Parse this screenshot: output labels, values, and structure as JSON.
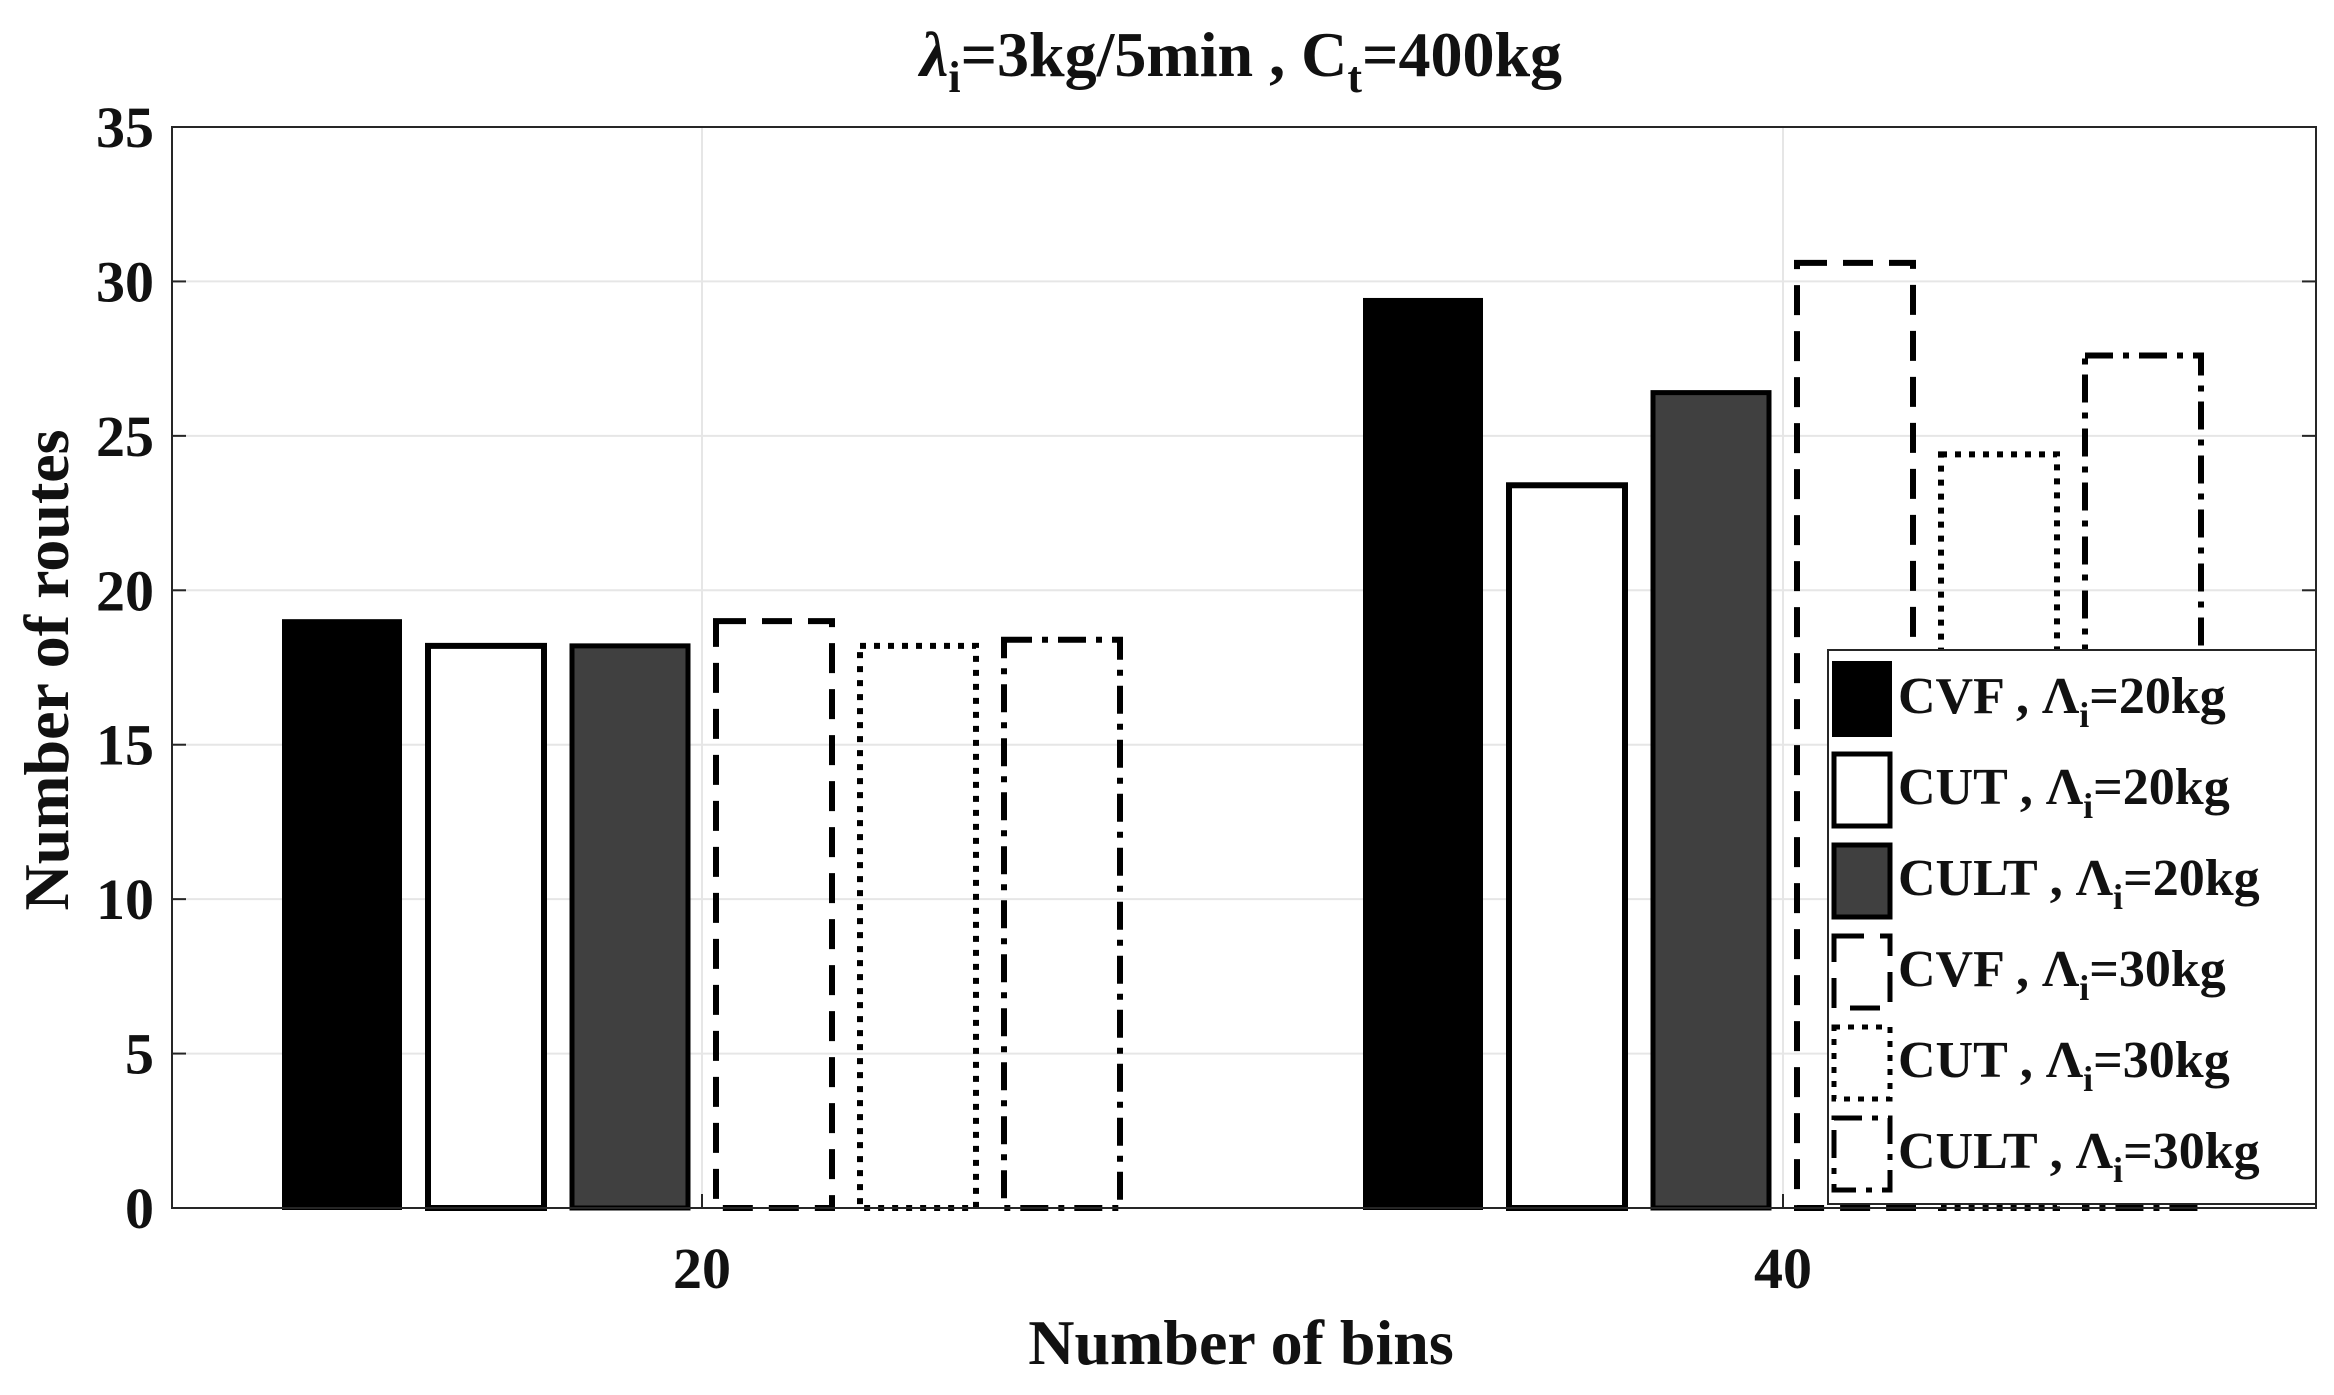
{
  "chart_data": {
    "type": "bar",
    "title": {
      "lambda": "λ",
      "sub1": "i",
      "mid": "=3kg/5min , C",
      "sub2": "t",
      "tail": "=400kg"
    },
    "xlabel": "Number of bins",
    "ylabel": "Number of routes",
    "categories": [
      "20",
      "40"
    ],
    "ylim": [
      0,
      35
    ],
    "yticks": [
      "0",
      "5",
      "10",
      "15",
      "20",
      "25",
      "30",
      "35"
    ],
    "grid": true,
    "legend_position": "bottom-right",
    "series": [
      {
        "name": {
          "method": "CVF , Λ",
          "sub": "i",
          "tail": "=20kg"
        },
        "style": "solid-black",
        "values": [
          19.0,
          29.4
        ]
      },
      {
        "name": {
          "method": "CUT , Λ",
          "sub": "i",
          "tail": "=20kg"
        },
        "style": "white",
        "values": [
          18.2,
          23.4
        ]
      },
      {
        "name": {
          "method": "CULT , Λ",
          "sub": "i",
          "tail": "=20kg"
        },
        "style": "solid-gray",
        "values": [
          18.2,
          26.4
        ]
      },
      {
        "name": {
          "method": "CVF , Λ",
          "sub": "i",
          "tail": "=30kg"
        },
        "style": "dashed",
        "values": [
          19.0,
          30.6
        ]
      },
      {
        "name": {
          "method": "CUT , Λ",
          "sub": "i",
          "tail": "=30kg"
        },
        "style": "dotted",
        "values": [
          18.2,
          24.4
        ]
      },
      {
        "name": {
          "method": "CULT , Λ",
          "sub": "i",
          "tail": "=30kg"
        },
        "style": "dashdot",
        "values": [
          18.4,
          27.6
        ]
      }
    ],
    "colors": {
      "black": "#000000",
      "gray": "#404040",
      "white": "#ffffff",
      "grid": "#e6e6e6",
      "axis": "#262626"
    }
  }
}
